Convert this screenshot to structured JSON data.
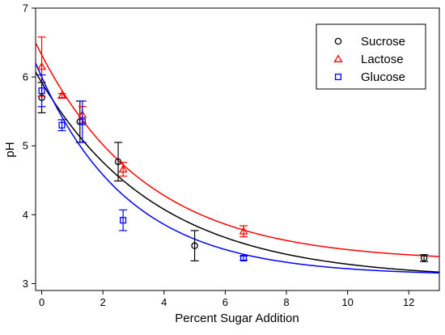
{
  "chart_data": {
    "type": "scatter",
    "xlabel": "Percent Sugar Addition",
    "ylabel": "pH",
    "xlim": [
      -0.2,
      13
    ],
    "ylim": [
      2.9,
      7
    ],
    "xticks": [
      0,
      2,
      4,
      6,
      8,
      10,
      12
    ],
    "yticks": [
      3,
      4,
      5,
      6,
      7
    ],
    "grid": false,
    "legend_position": "top-right",
    "series": [
      {
        "name": "Sucrose",
        "marker": "circle",
        "color": "#000000",
        "points": [
          {
            "x": 0.0,
            "y": 5.7,
            "err": 0.22
          },
          {
            "x": 1.25,
            "y": 5.35,
            "err": 0.3
          },
          {
            "x": 2.5,
            "y": 4.77,
            "err": 0.28
          },
          {
            "x": 5.0,
            "y": 3.55,
            "err": 0.22
          },
          {
            "x": 12.5,
            "y": 3.37,
            "err": 0.05
          }
        ],
        "fit": {
          "a": 2.85,
          "b": 3.07,
          "k": 0.26
        }
      },
      {
        "name": "Lactose",
        "marker": "triangle",
        "color": "#ff0000",
        "points": [
          {
            "x": 0.0,
            "y": 6.15,
            "err": 0.43
          },
          {
            "x": 0.66,
            "y": 5.73,
            "err": 0.03
          },
          {
            "x": 1.33,
            "y": 5.45,
            "err": 0.12
          },
          {
            "x": 2.66,
            "y": 4.66,
            "err": 0.1
          },
          {
            "x": 6.6,
            "y": 3.76,
            "err": 0.08
          }
        ],
        "fit": {
          "a": 3.0,
          "b": 3.32,
          "k": 0.285
        }
      },
      {
        "name": "Glucose",
        "marker": "square",
        "color": "#0000ff",
        "points": [
          {
            "x": 0.0,
            "y": 5.8,
            "err": 0.23
          },
          {
            "x": 0.66,
            "y": 5.3,
            "err": 0.08
          },
          {
            "x": 1.33,
            "y": 5.35,
            "err": 0.3
          },
          {
            "x": 2.66,
            "y": 3.92,
            "err": 0.15
          },
          {
            "x": 6.6,
            "y": 3.37,
            "err": 0.03
          }
        ],
        "fit": {
          "a": 2.88,
          "b": 3.12,
          "k": 0.34
        }
      }
    ]
  }
}
